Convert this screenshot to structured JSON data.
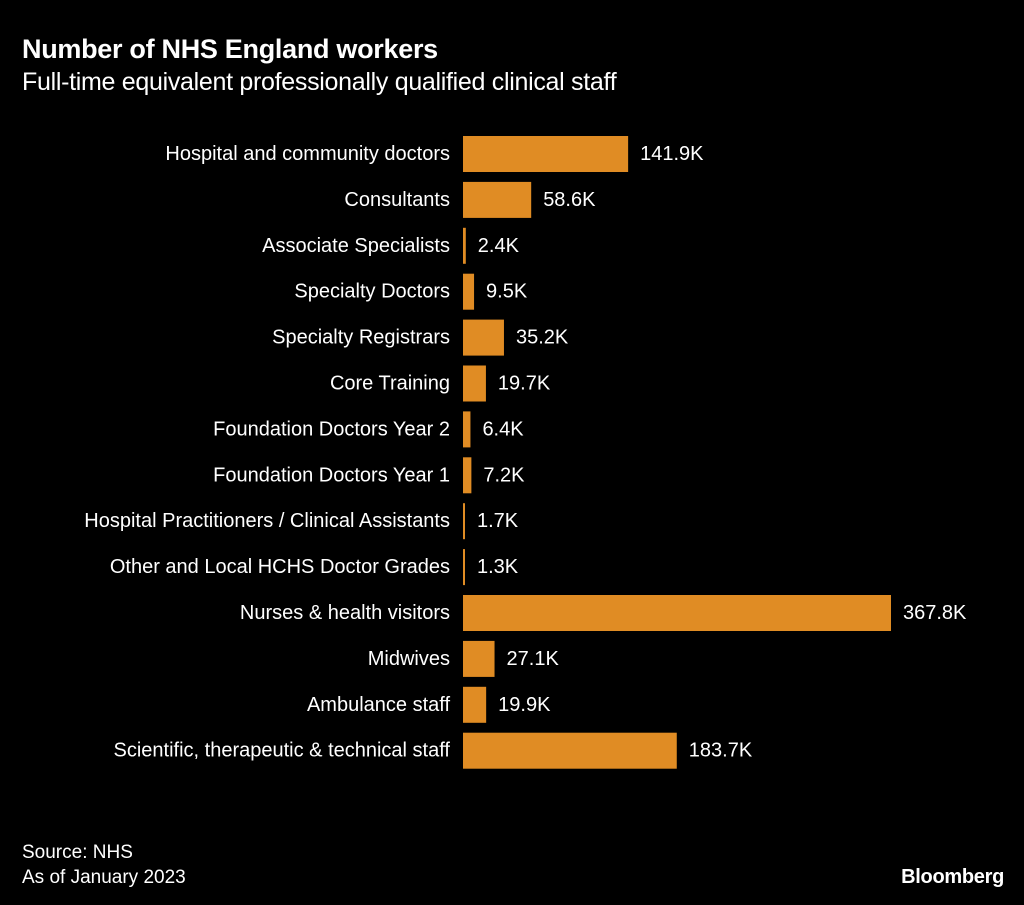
{
  "header": {
    "title": "Number of NHS England workers",
    "subtitle": "Full-time equivalent professionally qualified clinical staff"
  },
  "chart_data": {
    "type": "bar",
    "orientation": "horizontal",
    "categories": [
      "Hospital and community doctors",
      "Consultants",
      "Associate Specialists",
      "Specialty Doctors",
      "Specialty Registrars",
      "Core Training",
      "Foundation Doctors Year 2",
      "Foundation Doctors Year 1",
      "Hospital Practitioners / Clinical Assistants",
      "Other and Local HCHS Doctor Grades",
      "Nurses & health visitors",
      "Midwives",
      "Ambulance staff",
      "Scientific, therapeutic & technical staff"
    ],
    "values": [
      141.9,
      58.6,
      2.4,
      9.5,
      35.2,
      19.7,
      6.4,
      7.2,
      1.7,
      1.3,
      367.8,
      27.1,
      19.9,
      183.7
    ],
    "value_labels": [
      "141.9K",
      "58.6K",
      "2.4K",
      "9.5K",
      "35.2K",
      "19.7K",
      "6.4K",
      "7.2K",
      "1.7K",
      "1.3K",
      "367.8K",
      "27.1K",
      "19.9K",
      "183.7K"
    ],
    "bar_color": "#e08c24",
    "grid": false,
    "legend": "none"
  },
  "footer": {
    "source": "Source: NHS",
    "date_note": "As of January 2023",
    "brand": "Bloomberg"
  },
  "colors": {
    "background": "#000000",
    "text": "#ffffff",
    "bar": "#e08c24"
  }
}
